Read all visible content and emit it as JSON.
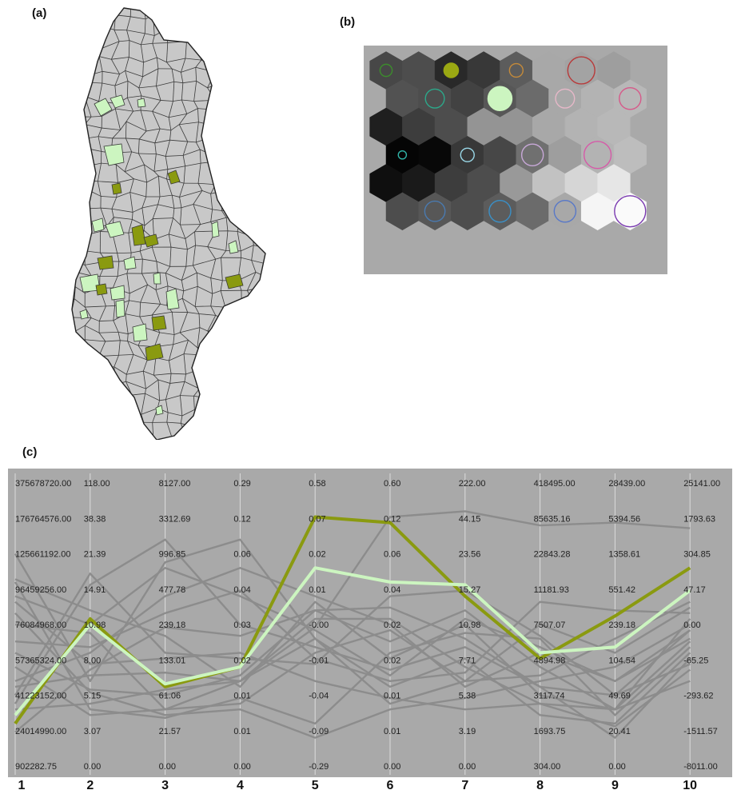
{
  "panels": {
    "a": {
      "label": "(a)"
    },
    "b": {
      "label": "(b)"
    },
    "c": {
      "label": "(c)"
    }
  },
  "colors": {
    "map_fill": "#c8c8c8",
    "map_border": "#3a3a3a",
    "highlight_dark": "#8a9a10",
    "highlight_light": "#ccf5c0",
    "panel_bg": "#a9a9a9",
    "axis": "#dcdcdc",
    "background_lines": "#8c8c8c"
  },
  "som": {
    "rows": 6,
    "cols": 8,
    "cells": [
      [
        0.28,
        0.3,
        0.16,
        0.22,
        0.36,
        0.66,
        0.64,
        0.62
      ],
      [
        0.32,
        0.3,
        0.26,
        0.34,
        0.42,
        0.66,
        0.7,
        0.72
      ],
      [
        0.12,
        0.24,
        0.3,
        0.58,
        0.58,
        0.66,
        0.7,
        0.72
      ],
      [
        0.02,
        0.03,
        0.22,
        0.28,
        0.44,
        0.62,
        0.7,
        0.74
      ],
      [
        0.06,
        0.1,
        0.24,
        0.3,
        0.6,
        0.76,
        0.84,
        0.9
      ],
      [
        0.3,
        0.34,
        0.3,
        0.36,
        0.42,
        0.66,
        0.96,
        0.98
      ]
    ],
    "circles": [
      {
        "row": 0,
        "col": 0,
        "size": 0.45,
        "color": "#3c8c2c",
        "filled": false
      },
      {
        "row": 0,
        "col": 2,
        "size": 0.55,
        "color": "#9aa813",
        "filled": true
      },
      {
        "row": 0,
        "col": 4,
        "size": 0.5,
        "color": "#c48a3a",
        "filled": false
      },
      {
        "row": 0,
        "col": 6,
        "size": 1.0,
        "color": "#b83a3a",
        "filled": false
      },
      {
        "row": 1,
        "col": 1,
        "size": 0.7,
        "color": "#2ca88a",
        "filled": false
      },
      {
        "row": 1,
        "col": 3,
        "size": 0.9,
        "color": "#ccf5c0",
        "filled": true
      },
      {
        "row": 1,
        "col": 5,
        "size": 0.7,
        "color": "#e6b8c8",
        "filled": false
      },
      {
        "row": 1,
        "col": 7,
        "size": 0.8,
        "color": "#d65a8a",
        "filled": false
      },
      {
        "row": 3,
        "col": 0,
        "size": 0.3,
        "color": "#30b4a8",
        "filled": false
      },
      {
        "row": 3,
        "col": 2,
        "size": 0.5,
        "color": "#9ad8e8",
        "filled": false
      },
      {
        "row": 3,
        "col": 4,
        "size": 0.8,
        "color": "#c8a8d8",
        "filled": false
      },
      {
        "row": 3,
        "col": 6,
        "size": 1.0,
        "color": "#d65aa8",
        "filled": false
      },
      {
        "row": 5,
        "col": 1,
        "size": 0.75,
        "color": "#4a7ab0",
        "filled": false
      },
      {
        "row": 5,
        "col": 3,
        "size": 0.8,
        "color": "#3a90c8",
        "filled": false
      },
      {
        "row": 5,
        "col": 5,
        "size": 0.8,
        "color": "#5878c8",
        "filled": false
      },
      {
        "row": 5,
        "col": 7,
        "size": 1.15,
        "color": "#7a3ab0",
        "filled": false
      }
    ]
  },
  "chart_data": {
    "type": "parallel-coordinates",
    "axes": [
      {
        "name": "1",
        "ticks": [
          "375678720.00",
          "176764576.00",
          "125661192.00",
          "96459256.00",
          "76084968.00",
          "57365324.00",
          "41223152.00",
          "24014990.00",
          "902282.75"
        ]
      },
      {
        "name": "2",
        "ticks": [
          "118.00",
          "38.38",
          "21.39",
          "14.91",
          "10.98",
          "8.00",
          "5.15",
          "3.07",
          "0.00"
        ]
      },
      {
        "name": "3",
        "ticks": [
          "8127.00",
          "3312.69",
          "996.85",
          "477.78",
          "239.18",
          "133.01",
          "61.06",
          "21.57",
          "0.00"
        ]
      },
      {
        "name": "4",
        "ticks": [
          "0.29",
          "0.12",
          "0.06",
          "0.04",
          "0.03",
          "0.02",
          "0.01",
          "0.01",
          "0.00"
        ]
      },
      {
        "name": "5",
        "ticks": [
          "0.58",
          "0.07",
          "0.02",
          "0.01",
          "-0.00",
          "-0.01",
          "-0.04",
          "-0.09",
          "-0.29"
        ]
      },
      {
        "name": "6",
        "ticks": [
          "0.60",
          "0.12",
          "0.06",
          "0.04",
          "0.02",
          "0.02",
          "0.01",
          "0.01",
          "0.00"
        ]
      },
      {
        "name": "7",
        "ticks": [
          "222.00",
          "44.15",
          "23.56",
          "15.27",
          "10.98",
          "7.71",
          "5.38",
          "3.19",
          "0.00"
        ]
      },
      {
        "name": "8",
        "ticks": [
          "418495.00",
          "85635.16",
          "22843.28",
          "11181.93",
          "7507.07",
          "4894.98",
          "3117.74",
          "1693.75",
          "304.00"
        ]
      },
      {
        "name": "9",
        "ticks": [
          "28439.00",
          "5394.56",
          "1358.61",
          "551.42",
          "239.18",
          "104.54",
          "49.69",
          "20.41",
          "0.00"
        ]
      },
      {
        "name": "10",
        "ticks": [
          "25141.00",
          "1793.63",
          "304.85",
          "47.17",
          "0.00",
          "-65.25",
          "-293.62",
          "-1511.57",
          "-8011.00"
        ]
      }
    ],
    "series": [
      {
        "color": "#8a9a10",
        "values": [
          0.15,
          0.52,
          0.28,
          0.35,
          0.88,
          0.86,
          0.6,
          0.38,
          0.53,
          0.7
        ]
      },
      {
        "color": "#ccf5c0",
        "values": [
          0.18,
          0.5,
          0.29,
          0.35,
          0.7,
          0.65,
          0.64,
          0.4,
          0.42,
          0.62
        ]
      }
    ],
    "background_series": [
      [
        0.5,
        0.47,
        0.2,
        0.3,
        0.45,
        0.22,
        0.3,
        0.5,
        0.4,
        0.56
      ],
      [
        0.58,
        0.36,
        0.38,
        0.4,
        0.3,
        0.24,
        0.2,
        0.22,
        0.2,
        0.3
      ],
      [
        0.3,
        0.4,
        0.6,
        0.7,
        0.6,
        0.5,
        0.28,
        0.4,
        0.3,
        0.45
      ],
      [
        0.75,
        0.3,
        0.72,
        0.8,
        0.45,
        0.28,
        0.38,
        0.18,
        0.15,
        0.4
      ],
      [
        0.22,
        0.64,
        0.8,
        0.5,
        0.42,
        0.34,
        0.42,
        0.28,
        0.25,
        0.48
      ],
      [
        0.4,
        0.27,
        0.25,
        0.32,
        0.55,
        0.44,
        0.55,
        0.35,
        0.2,
        0.52
      ],
      [
        0.65,
        0.2,
        0.17,
        0.24,
        0.15,
        0.4,
        0.47,
        0.45,
        0.18,
        0.42
      ],
      [
        0.28,
        0.32,
        0.33,
        0.3,
        0.49,
        0.88,
        0.9,
        0.85,
        0.86,
        0.84
      ],
      [
        0.12,
        0.34,
        0.49,
        0.46,
        0.55,
        0.56,
        0.45,
        0.28,
        0.1,
        0.38
      ],
      [
        0.54,
        0.26,
        0.18,
        0.2,
        0.1,
        0.2,
        0.24,
        0.3,
        0.35,
        0.5
      ],
      [
        0.2,
        0.22,
        0.27,
        0.3,
        0.52,
        0.52,
        0.35,
        0.22,
        0.14,
        0.34
      ],
      [
        0.44,
        0.42,
        0.54,
        0.62,
        0.38,
        0.3,
        0.33,
        0.58,
        0.55,
        0.54
      ],
      [
        0.66,
        0.55,
        0.46,
        0.28,
        0.58,
        0.38,
        0.5,
        0.25,
        0.2,
        0.44
      ],
      [
        0.35,
        0.18,
        0.2,
        0.22,
        0.4,
        0.48,
        0.3,
        0.32,
        0.45,
        0.58
      ],
      [
        0.6,
        0.5,
        0.7,
        0.6,
        0.48,
        0.32,
        0.52,
        0.42,
        0.3,
        0.48
      ],
      [
        0.25,
        0.68,
        0.4,
        0.38,
        0.36,
        0.6,
        0.62,
        0.46,
        0.25,
        0.36
      ]
    ]
  }
}
